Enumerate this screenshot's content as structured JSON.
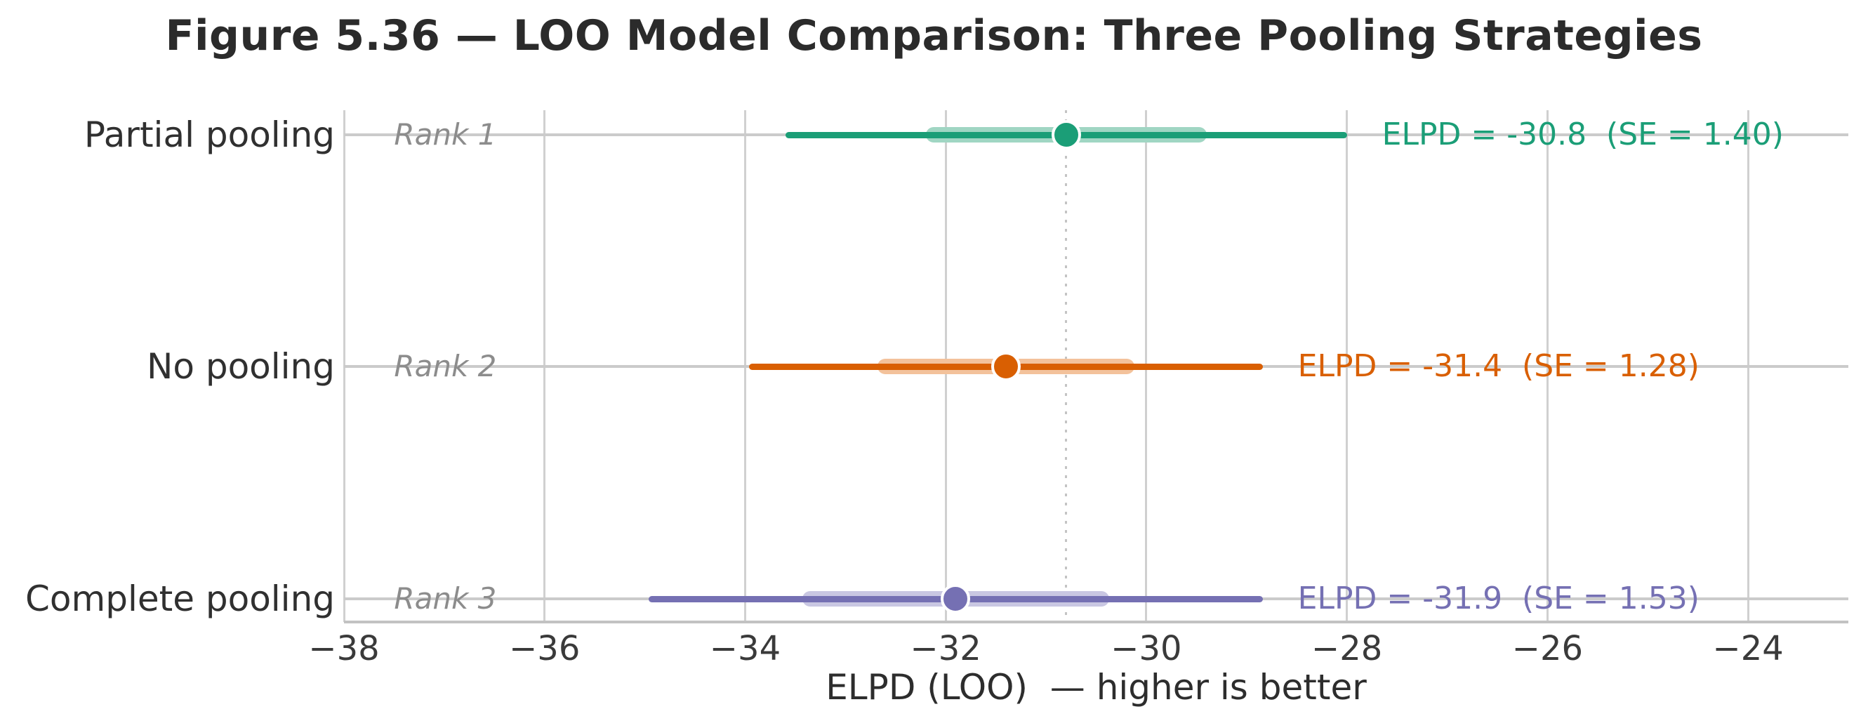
{
  "chart_data": {
    "type": "scatter",
    "variant": "dot-and-interval (forest) model comparison plot",
    "title": "Figure 5.36 — LOO Model Comparison: Three Pooling Strategies",
    "xlabel": "ELPD (LOO)  — higher is better",
    "xlim": [
      -38,
      -23
    ],
    "xticks": [
      -38,
      -36,
      -34,
      -32,
      -30,
      -28,
      -26,
      -24
    ],
    "xtick_labels": [
      "−38",
      "−36",
      "−34",
      "−32",
      "−30",
      "−28",
      "−26",
      "−24"
    ],
    "grid": "vertical gridlines on, no top/left/right spines",
    "reference_line_x": -30.8,
    "legend": "none",
    "models": [
      {
        "label": "Partial pooling",
        "rank_label": "Rank 1",
        "elpd": -30.8,
        "se": 1.4,
        "interval_1se": [
          -32.2,
          -29.4
        ],
        "interval_2se": [
          -33.6,
          -28.0
        ],
        "annotation": "ELPD = -30.8  (SE = 1.40)",
        "color": "#1b9e77",
        "color_light": "#a0d6c3"
      },
      {
        "label": "No pooling",
        "rank_label": "Rank 2",
        "elpd": -31.4,
        "se": 1.28,
        "interval_1se": [
          -32.68,
          -30.12
        ],
        "interval_2se": [
          -33.96,
          -28.84
        ],
        "annotation": "ELPD = -31.4  (SE = 1.28)",
        "color": "#d95f02",
        "color_light": "#f3c29b"
      },
      {
        "label": "Complete pooling",
        "rank_label": "Rank 3",
        "elpd": -31.9,
        "se": 1.53,
        "interval_1se": [
          -33.43,
          -30.37
        ],
        "interval_2se": [
          -34.96,
          -28.84
        ],
        "annotation": "ELPD = -31.9  (SE = 1.53)",
        "color": "#7570b3",
        "color_light": "#c9c7e2"
      }
    ]
  }
}
